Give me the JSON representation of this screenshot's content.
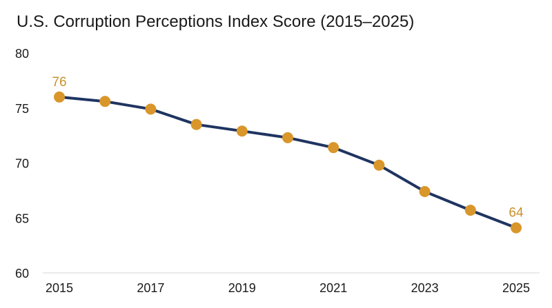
{
  "chart_data": {
    "type": "line",
    "title": "U.S. Corruption Perceptions Index Score (2015–2025)",
    "xlabel": "",
    "ylabel": "",
    "x": [
      2015,
      2016,
      2017,
      2018,
      2019,
      2020,
      2021,
      2022,
      2023,
      2024,
      2025
    ],
    "values": [
      76,
      75.6,
      74.9,
      73.5,
      72.9,
      72.3,
      71.4,
      69.8,
      67.4,
      65.7,
      64.1
    ],
    "xticks": [
      "2015",
      "2017",
      "2019",
      "2021",
      "2023",
      "2025"
    ],
    "yticks": [
      "60",
      "65",
      "70",
      "75",
      "80"
    ],
    "ylim": [
      60,
      80
    ],
    "grid": false,
    "data_labels": [
      {
        "index": 0,
        "text": "76"
      },
      {
        "index": 10,
        "text": "64"
      }
    ],
    "colors": {
      "line": "#1f3460",
      "marker": "#d9962a",
      "label": "#c8902a",
      "axis": "#e3e3e3"
    }
  }
}
